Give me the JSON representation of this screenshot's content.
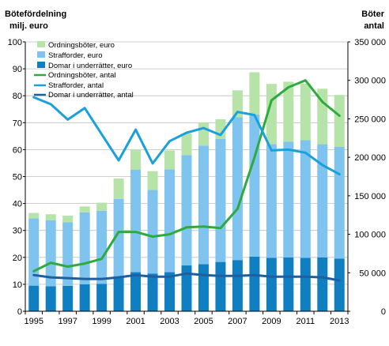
{
  "colors": {
    "ordningsboter_bar": "#b5e3a8",
    "strafforder_bar": "#7ec4ee",
    "domar_bar": "#0f7fc2",
    "ordningsboter_line": "#2eaa3f",
    "strafforder_line": "#1aa0db",
    "domar_line": "#1f5fa0",
    "grid": "#bfbfbf",
    "axis": "#000000"
  },
  "chart_data": {
    "type": "bar",
    "stacked": true,
    "title": "",
    "left_axis_title": [
      "Bötefördelning",
      "milj. euro"
    ],
    "right_axis_title": [
      "Böter",
      "antal"
    ],
    "x": [
      1995,
      1996,
      1997,
      1998,
      1999,
      2000,
      2001,
      2002,
      2003,
      2004,
      2005,
      2006,
      2007,
      2008,
      2009,
      2010,
      2011,
      2012,
      2013
    ],
    "x_tick_labels": [
      "1995",
      "1997",
      "1999",
      "2001",
      "2003",
      "2005",
      "2007",
      "2009",
      "2011",
      "2013"
    ],
    "ylim_left": [
      0,
      100
    ],
    "y_ticks_left": [
      "0",
      "10",
      "20",
      "30",
      "40",
      "50",
      "60",
      "70",
      "80",
      "90",
      "100"
    ],
    "ylim_right": [
      0,
      350000
    ],
    "y_ticks_right": [
      "0",
      "50 000",
      "100 000",
      "150 000",
      "200 000",
      "250 000",
      "300 000",
      "350 000"
    ],
    "grid": true,
    "legend_position": "top-left",
    "legend": [
      "Ordningsböter, euro",
      "Strafforder, euro",
      "Domar i underrätter, euro",
      "Ordningsböter, antal",
      "Strafforder, antal",
      "Domar i underrätter, antal"
    ],
    "bar_series": [
      {
        "name": "Domar i underrätter, euro",
        "values": [
          9.5,
          9.3,
          9.4,
          10.0,
          10.2,
          13.0,
          14.5,
          14.0,
          14.5,
          17.0,
          17.5,
          18.3,
          19.0,
          20.3,
          19.8,
          20.0,
          19.8,
          20.0,
          19.5
        ]
      },
      {
        "name": "Strafforder, euro",
        "values": [
          25.0,
          24.5,
          23.6,
          26.7,
          27.1,
          28.7,
          38.1,
          31.0,
          38.2,
          41.0,
          44.0,
          45.7,
          53.0,
          52.7,
          42.2,
          43.0,
          43.7,
          42.0,
          41.5
        ]
      },
      {
        "name": "Ordningsböter, euro",
        "values": [
          2.0,
          2.2,
          2.5,
          2.2,
          3.0,
          7.6,
          7.2,
          7.0,
          7.0,
          8.0,
          8.5,
          7.3,
          10.0,
          15.7,
          22.4,
          22.2,
          21.0,
          20.6,
          19.3
        ]
      }
    ],
    "line_series": [
      {
        "name": "Ordningsböter, antal",
        "values": [
          52000,
          63000,
          58000,
          62000,
          68000,
          103000,
          103000,
          97000,
          100000,
          109000,
          110000,
          108000,
          133000,
          200000,
          274000,
          291000,
          300000,
          272000,
          254000
        ]
      },
      {
        "name": "Strafforder, antal",
        "values": [
          278000,
          269000,
          249000,
          264000,
          230000,
          196000,
          236000,
          192000,
          221000,
          232000,
          238000,
          229000,
          259000,
          255000,
          209000,
          210000,
          206000,
          190000,
          178000
        ]
      },
      {
        "name": "Domar i underrätter, antal",
        "values": [
          47000,
          44000,
          43000,
          42000,
          42000,
          44000,
          47000,
          45000,
          45000,
          49000,
          47000,
          46000,
          46000,
          47000,
          45000,
          45000,
          45000,
          44000,
          40000
        ]
      }
    ]
  }
}
